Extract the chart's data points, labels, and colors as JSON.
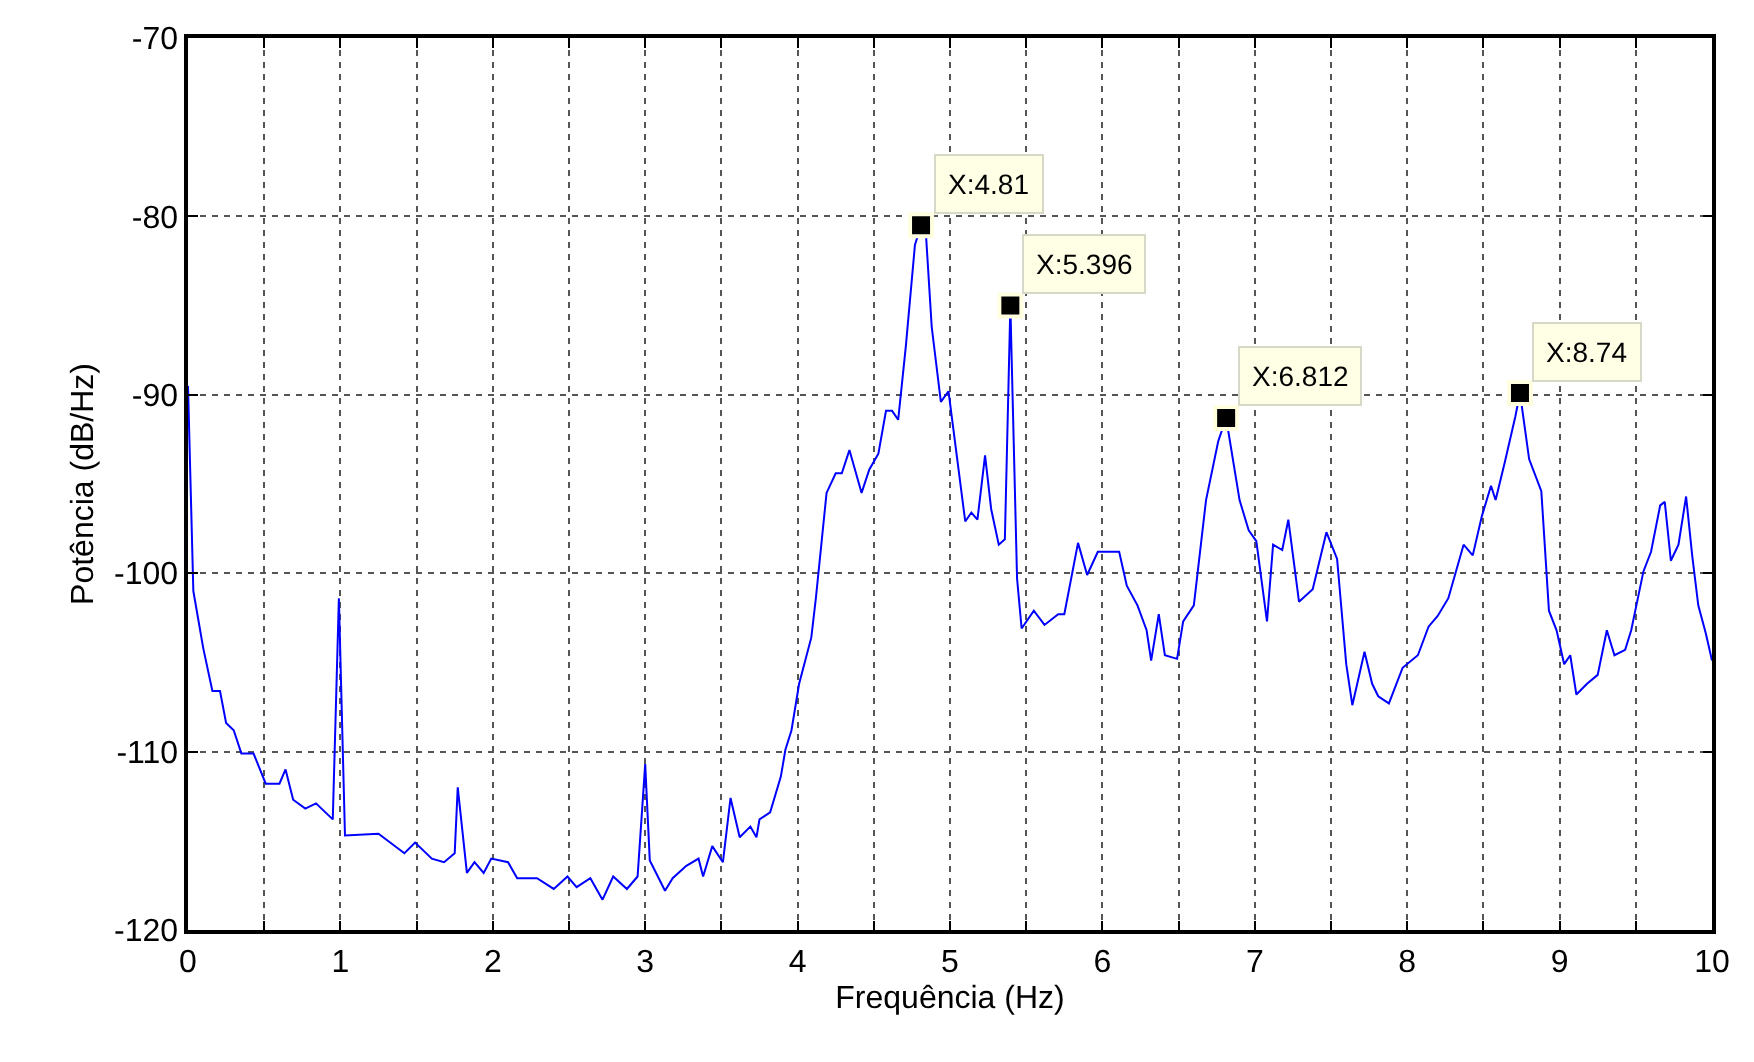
{
  "chart_data": {
    "type": "line",
    "xlabel": "Frequência (Hz)",
    "ylabel": "Potência (dB/Hz)",
    "xlim": [
      0,
      10
    ],
    "ylim": [
      -120,
      -70
    ],
    "xticks": [
      0,
      {
        "value": 0.5,
        "label": null
      },
      1,
      {
        "value": 1.5,
        "label": null
      },
      2,
      {
        "value": 2.5,
        "label": null
      },
      3,
      {
        "value": 3.5,
        "label": null
      },
      4,
      {
        "value": 4.5,
        "label": null
      },
      5,
      {
        "value": 5.5,
        "label": null
      },
      6,
      {
        "value": 6.5,
        "label": null
      },
      7,
      {
        "value": 7.5,
        "label": null
      },
      8,
      {
        "value": 8.5,
        "label": null
      },
      9,
      {
        "value": 9.5,
        "label": null
      },
      10
    ],
    "yticks": [
      -120,
      -110,
      -100,
      -90,
      -80,
      -70
    ],
    "grid": true,
    "series": [
      {
        "color": "#0000ff",
        "x": [
          0,
          0.035,
          0.1,
          0.16,
          0.21,
          0.25,
          0.3,
          0.35,
          0.43,
          0.51,
          0.6,
          0.64,
          0.69,
          0.77,
          0.84,
          0.95,
          0.99,
          1.03,
          1.25,
          1.42,
          1.49,
          1.6,
          1.68,
          1.75,
          1.77,
          1.83,
          1.88,
          1.94,
          1.99,
          2.1,
          2.16,
          2.29,
          2.4,
          2.49,
          2.55,
          2.64,
          2.72,
          2.79,
          2.88,
          2.95,
          3.0,
          3.03,
          3.13,
          3.18,
          3.27,
          3.35,
          3.38,
          3.44,
          3.51,
          3.56,
          3.62,
          3.69,
          3.73,
          3.75,
          3.82,
          3.89,
          3.92,
          3.96,
          4.01,
          4.09,
          4.12,
          4.19,
          4.25,
          4.29,
          4.34,
          4.42,
          4.47,
          4.53,
          4.58,
          4.62,
          4.66,
          4.71,
          4.77,
          4.81,
          4.84,
          4.88,
          4.94,
          4.99,
          5.1,
          5.14,
          5.18,
          5.23,
          5.27,
          5.32,
          5.36,
          5.396,
          5.44,
          5.47,
          5.55,
          5.62,
          5.71,
          5.75,
          5.84,
          5.9,
          5.97,
          6.11,
          6.16,
          6.23,
          6.29,
          6.32,
          6.37,
          6.41,
          6.49,
          6.53,
          6.6,
          6.68,
          6.76,
          6.812,
          6.9,
          6.96,
          7.01,
          7.08,
          7.12,
          7.18,
          7.22,
          7.29,
          7.38,
          7.47,
          7.54,
          7.6,
          7.64,
          7.72,
          7.77,
          7.81,
          7.88,
          7.97,
          8.07,
          8.14,
          8.2,
          8.27,
          8.37,
          8.43,
          8.49,
          8.55,
          8.58,
          8.64,
          8.71,
          8.74,
          8.8,
          8.88,
          8.93,
          8.98,
          9.03,
          9.07,
          9.11,
          9.18,
          9.25,
          9.31,
          9.36,
          9.43,
          9.47,
          9.55,
          9.6,
          9.66,
          9.69,
          9.73,
          9.78,
          9.83,
          9.87,
          9.91,
          9.96,
          10.0
        ],
        "values": [
          -89.5,
          -101,
          -104.2,
          -106.6,
          -106.6,
          -108.4,
          -108.8,
          -110.1,
          -110.1,
          -111.8,
          -111.8,
          -111,
          -112.7,
          -113.2,
          -112.9,
          -113.8,
          -101.4,
          -114.7,
          -114.6,
          -115.7,
          -115.1,
          -116,
          -116.2,
          -115.7,
          -112,
          -116.8,
          -116.2,
          -116.8,
          -116,
          -116.2,
          -117.1,
          -117.1,
          -117.7,
          -117,
          -117.6,
          -117.1,
          -118.3,
          -117,
          -117.7,
          -117,
          -110.7,
          -116.1,
          -117.8,
          -117.1,
          -116.4,
          -116,
          -117,
          -115.3,
          -116.2,
          -112.6,
          -114.8,
          -114.2,
          -114.8,
          -113.8,
          -113.4,
          -111.4,
          -109.9,
          -108.8,
          -106.2,
          -103.6,
          -101.4,
          -95.5,
          -94.4,
          -94.4,
          -93.1,
          -95.5,
          -94.2,
          -93.3,
          -90.9,
          -90.9,
          -91.4,
          -87.3,
          -81.6,
          -80.5,
          -80.7,
          -86.2,
          -90.4,
          -89.8,
          -97.1,
          -96.6,
          -97,
          -93.4,
          -96.4,
          -98.4,
          -98.1,
          -85,
          -100.3,
          -103.1,
          -102.1,
          -102.9,
          -102.3,
          -102.3,
          -98.3,
          -100.1,
          -98.8,
          -98.8,
          -100.7,
          -101.8,
          -103.2,
          -104.9,
          -102.3,
          -104.6,
          -104.8,
          -102.7,
          -101.8,
          -95.9,
          -92.6,
          -91.3,
          -95.9,
          -97.6,
          -98.2,
          -102.7,
          -98.4,
          -98.7,
          -97,
          -101.6,
          -100.9,
          -97.7,
          -99.2,
          -105.1,
          -107.4,
          -104.4,
          -106.2,
          -106.9,
          -107.3,
          -105.3,
          -104.6,
          -103,
          -102.4,
          -101.4,
          -98.4,
          -99,
          -96.8,
          -95.1,
          -95.9,
          -93.8,
          -91.2,
          -89.9,
          -93.6,
          -95.4,
          -102.1,
          -103.2,
          -105.1,
          -104.6,
          -106.8,
          -106.2,
          -105.7,
          -103.2,
          -104.6,
          -104.3,
          -103.2,
          -99.9,
          -98.8,
          -96.2,
          -96,
          -99.3,
          -98.4,
          -95.7,
          -99,
          -101.8,
          -103.4,
          -104.9
        ]
      }
    ],
    "annotations": [
      {
        "text": "X:4.81",
        "x": 4.81,
        "y": -80.5
      },
      {
        "text": "X:5.396",
        "x": 5.396,
        "y": -85
      },
      {
        "text": "X:6.812",
        "x": 6.812,
        "y": -91.3
      },
      {
        "text": "X:8.74",
        "x": 8.74,
        "y": -89.9
      }
    ]
  }
}
